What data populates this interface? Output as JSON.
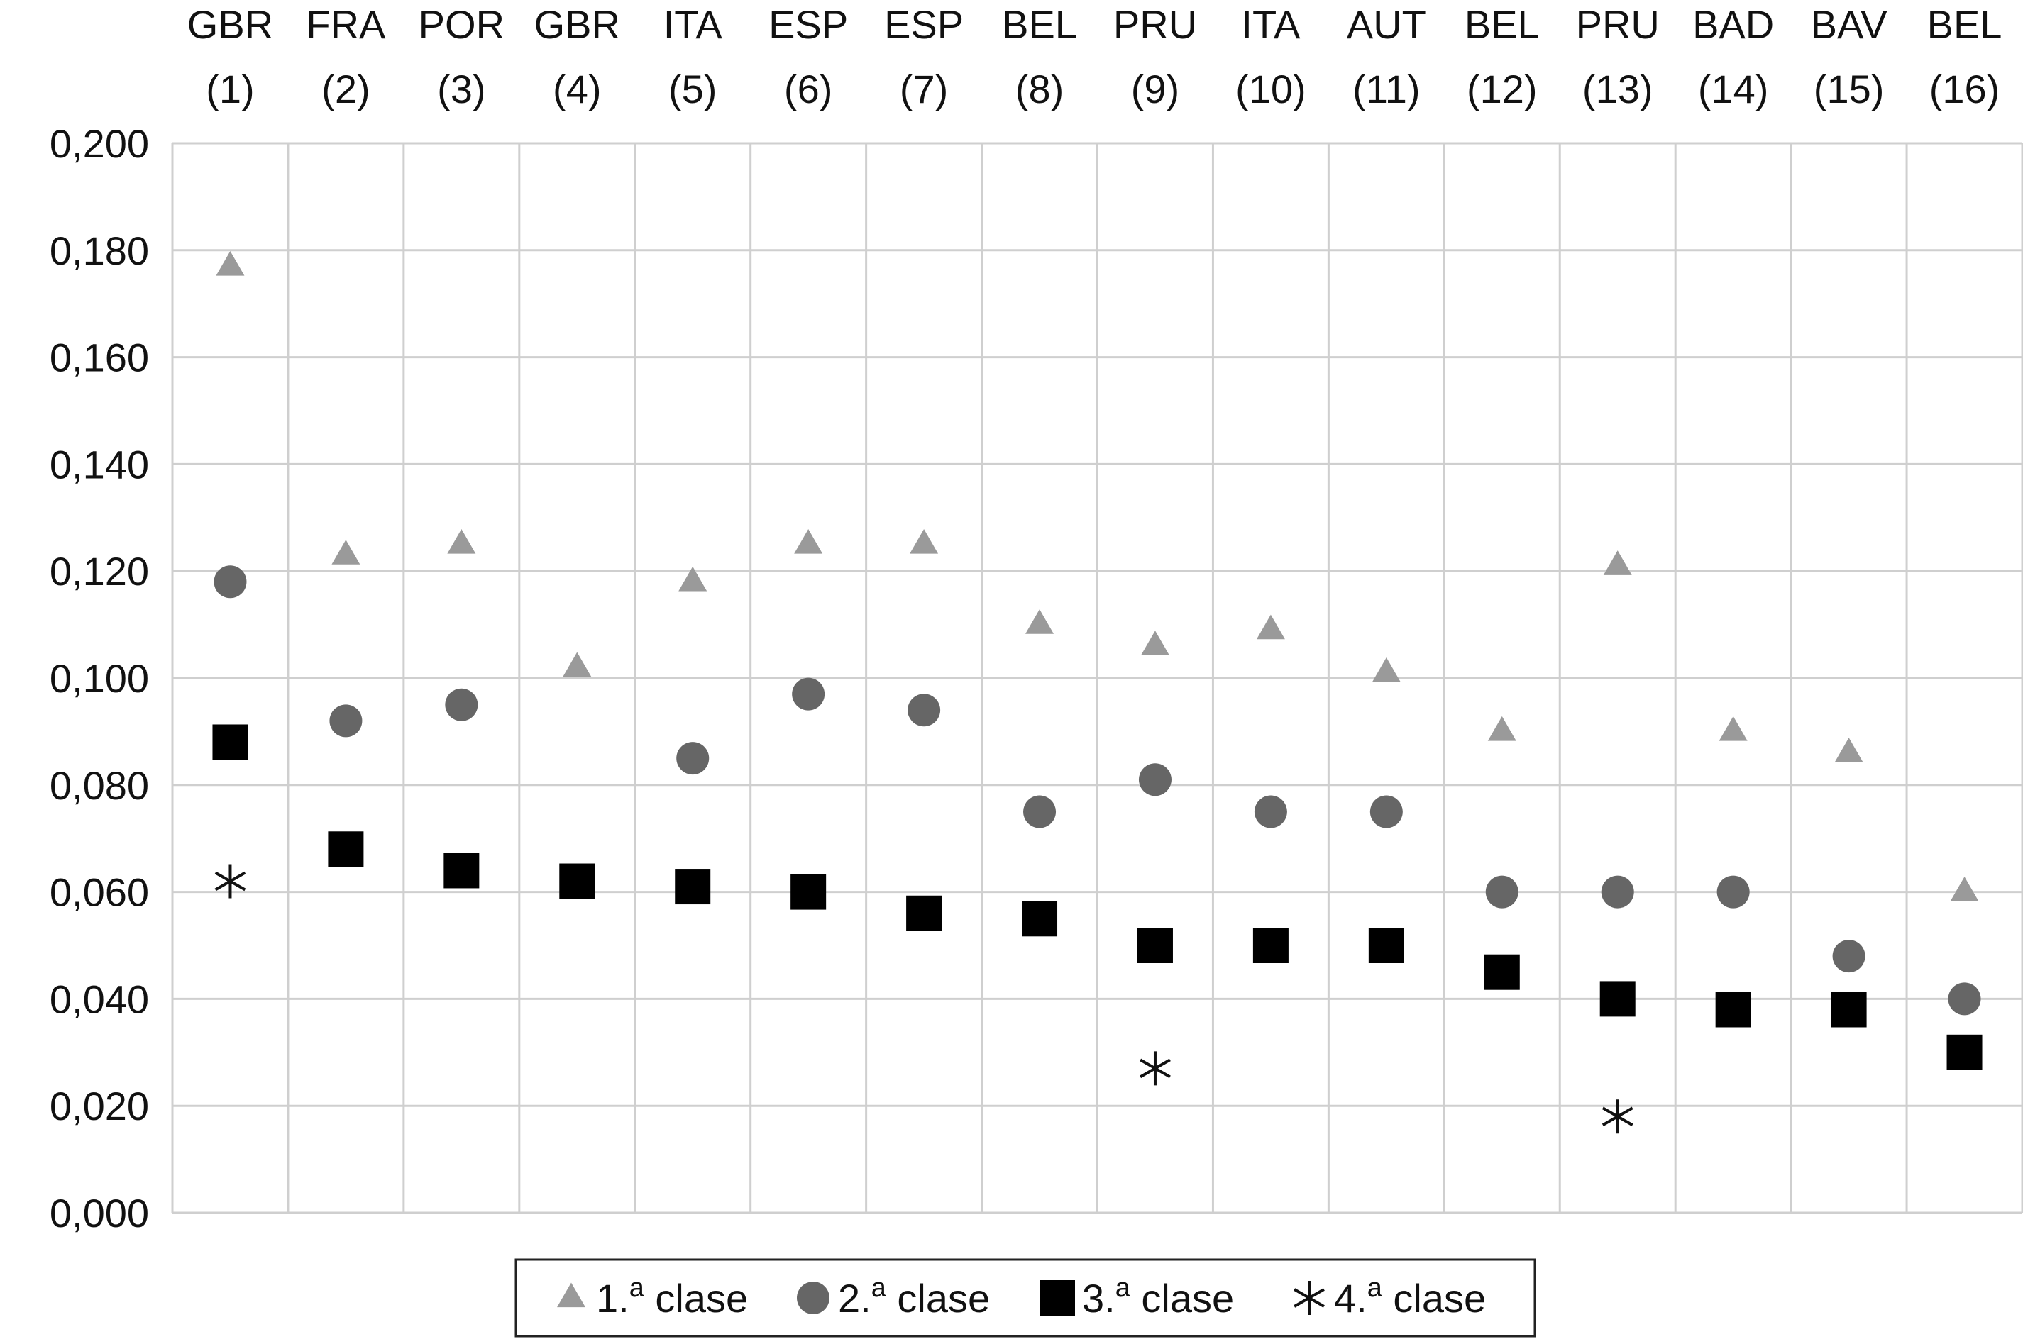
{
  "chart_data": {
    "type": "scatter",
    "title": "",
    "xlabel": "",
    "ylabel": "",
    "ylim": [
      0,
      0.2
    ],
    "y_ticks": [
      "0,000",
      "0,020",
      "0,040",
      "0,060",
      "0,080",
      "0,100",
      "0,120",
      "0,140",
      "0,160",
      "0,180",
      "0,200"
    ],
    "grid": true,
    "legend_position": "bottom-center",
    "categories": [
      {
        "code": "GBR",
        "num": "(1)"
      },
      {
        "code": "FRA",
        "num": "(2)"
      },
      {
        "code": "POR",
        "num": "(3)"
      },
      {
        "code": "GBR",
        "num": "(4)"
      },
      {
        "code": "ITA",
        "num": "(5)"
      },
      {
        "code": "ESP",
        "num": "(6)"
      },
      {
        "code": "ESP",
        "num": "(7)"
      },
      {
        "code": "BEL",
        "num": "(8)"
      },
      {
        "code": "PRU",
        "num": "(9)"
      },
      {
        "code": "ITA",
        "num": "(10)"
      },
      {
        "code": "AUT",
        "num": "(11)"
      },
      {
        "code": "BEL",
        "num": "(12)"
      },
      {
        "code": "PRU",
        "num": "(13)"
      },
      {
        "code": "BAD",
        "num": "(14)"
      },
      {
        "code": "BAV",
        "num": "(15)"
      },
      {
        "code": "BEL",
        "num": "(16)"
      }
    ],
    "series": [
      {
        "name": "1.ª clase",
        "legend_main": "1.",
        "legend_sup": "a",
        "legend_rest": " clase",
        "marker": "triangle",
        "color": "#9a9a9a",
        "values": [
          0.177,
          0.123,
          0.125,
          0.102,
          0.118,
          0.125,
          0.125,
          0.11,
          0.106,
          0.109,
          0.101,
          0.09,
          0.121,
          0.09,
          0.086,
          0.06
        ]
      },
      {
        "name": "2.ª clase",
        "legend_main": "2.",
        "legend_sup": "a",
        "legend_rest": " clase",
        "marker": "circle",
        "color": "#666666",
        "values": [
          0.118,
          0.092,
          0.095,
          null,
          0.085,
          0.097,
          0.094,
          0.075,
          0.081,
          0.075,
          0.075,
          0.06,
          0.06,
          0.06,
          0.048,
          0.04
        ]
      },
      {
        "name": "3.ª clase",
        "legend_main": "3.",
        "legend_sup": "a",
        "legend_rest": " clase",
        "marker": "square",
        "color": "#000000",
        "values": [
          0.088,
          0.068,
          0.064,
          0.062,
          0.061,
          0.06,
          0.056,
          0.055,
          0.05,
          0.05,
          0.05,
          0.045,
          0.04,
          0.038,
          0.038,
          0.03
        ]
      },
      {
        "name": "4.ª clase",
        "legend_main": "4.",
        "legend_sup": "a",
        "legend_rest": " clase",
        "marker": "asterisk",
        "color": "#111111",
        "values": [
          0.062,
          null,
          null,
          null,
          null,
          null,
          null,
          null,
          0.027,
          null,
          null,
          null,
          0.018,
          null,
          null,
          null
        ]
      }
    ]
  }
}
